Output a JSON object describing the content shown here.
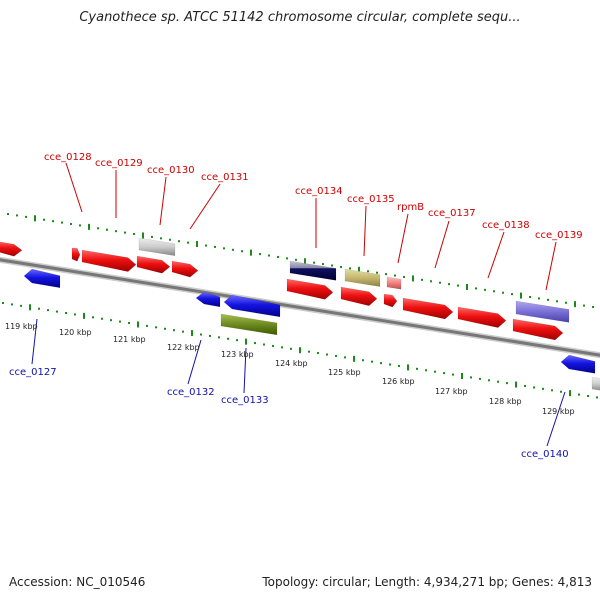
{
  "title": "Cyanothece sp. ATCC 51142 chromosome circular, complete sequ...",
  "footer": {
    "accession": "Accession: NC_010546",
    "summary": "Topology: circular; Length: 4,934,271 bp; Genes: 4,813"
  },
  "top_labels": [
    "cce_0128",
    "cce_0129",
    "cce_0130",
    "cce_0131",
    "cce_0134",
    "cce_0135",
    "rpmB",
    "cce_0137",
    "cce_0138",
    "cce_0139"
  ],
  "bottom_labels": [
    "cce_0127",
    "cce_0132",
    "cce_0133",
    "cce_0140"
  ],
  "kbp_ticks": [
    "119 kbp",
    "120 kbp",
    "121 kbp",
    "122 kbp",
    "123 kbp",
    "124 kbp",
    "125 kbp",
    "126 kbp",
    "127 kbp",
    "128 kbp",
    "129 kbp"
  ],
  "colors": {
    "forward_gene": "#e81010",
    "reverse_gene": "#1414d8",
    "top_label": "#cc0000",
    "bottom_label": "#1010aa",
    "gc_ticks": "#1a8a1a",
    "backbone": "#888888"
  }
}
